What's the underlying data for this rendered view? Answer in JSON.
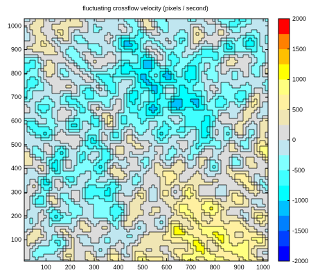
{
  "chart_data": {
    "type": "heatmap",
    "subtype": "filled-contour",
    "title": "fluctuating crossflow velocity  (pixels / second)",
    "xlabel": "",
    "ylabel": "",
    "xlim": [
      10,
      1020
    ],
    "ylim": [
      10,
      1030
    ],
    "x_ticks": [
      "100",
      "200",
      "300",
      "400",
      "500",
      "600",
      "700",
      "800",
      "900",
      "1000"
    ],
    "y_ticks": [
      "100",
      "200",
      "300",
      "400",
      "500",
      "600",
      "700",
      "800",
      "900",
      "1000"
    ],
    "grid": false,
    "colorbar": {
      "range": [
        -2000,
        2000
      ],
      "ticks": [
        "2000",
        "1500",
        "1000",
        "500",
        "0",
        "-500",
        "-1000",
        "-1500",
        "-2000"
      ],
      "levels": [
        {
          "from": -2000,
          "to": -1750,
          "color": "#0000ff"
        },
        {
          "from": -1750,
          "to": -1500,
          "color": "#0040ff"
        },
        {
          "from": -1500,
          "to": -1250,
          "color": "#0080ff"
        },
        {
          "from": -1250,
          "to": -1000,
          "color": "#00c0ff"
        },
        {
          "from": -1000,
          "to": -750,
          "color": "#00ffff"
        },
        {
          "from": -750,
          "to": -500,
          "color": "#40ffff"
        },
        {
          "from": -500,
          "to": -250,
          "color": "#80ffff"
        },
        {
          "from": -250,
          "to": 0,
          "color": "#c0e6f0"
        },
        {
          "from": 0,
          "to": 250,
          "color": "#dcdcdc"
        },
        {
          "from": 250,
          "to": 500,
          "color": "#f0e6b4"
        },
        {
          "from": 500,
          "to": 750,
          "color": "#fff0a0"
        },
        {
          "from": 750,
          "to": 1000,
          "color": "#ffff80"
        },
        {
          "from": 1000,
          "to": 1250,
          "color": "#ffff00"
        },
        {
          "from": 1250,
          "to": 1500,
          "color": "#ffc000"
        },
        {
          "from": 1500,
          "to": 1750,
          "color": "#ff8000"
        },
        {
          "from": 1750,
          "to": 2000,
          "color": "#ff0000"
        }
      ]
    }
  }
}
